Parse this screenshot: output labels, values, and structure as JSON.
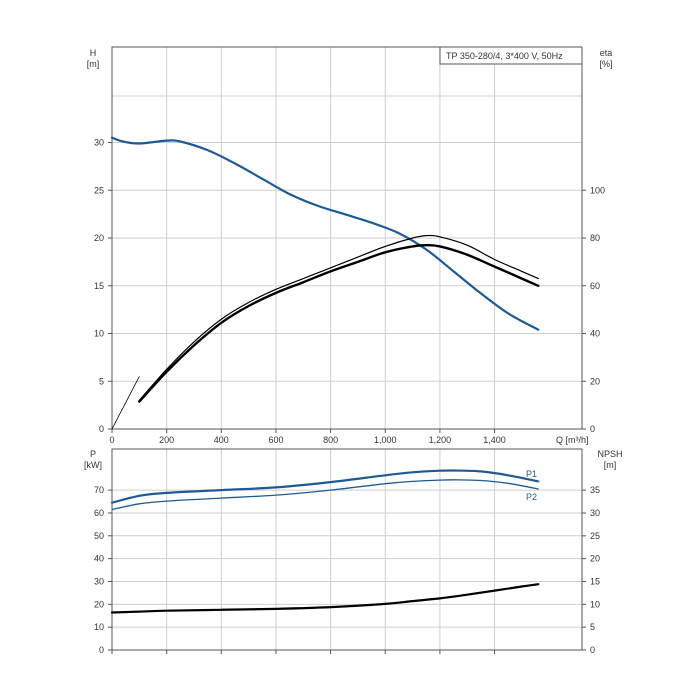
{
  "chart_data": [
    {
      "type": "line",
      "title": "TP 350-280/4, 3*400 V, 50Hz",
      "y_left_label": "H",
      "y_left_unit": "[m]",
      "y_right_label": "eta",
      "y_right_unit": "[%]",
      "x_label": "Q [m³/h]",
      "x_ticks": [
        "0",
        "200",
        "400",
        "600",
        "800",
        "1,000",
        "1,200",
        "1,400"
      ],
      "y_left_ticks": [
        "0",
        "5",
        "10",
        "15",
        "20",
        "25",
        "30"
      ],
      "y_right_ticks": [
        "0",
        "20",
        "40",
        "60",
        "80",
        "100"
      ],
      "xlim": [
        0,
        1720
      ],
      "ylim": [
        0,
        40
      ],
      "y_right_lim": [
        0,
        160
      ],
      "series": [
        {
          "axis": "left",
          "color": "#1f5a96",
          "width": 2.2,
          "points": [
            [
              0,
              30.5
            ],
            [
              40,
              30.1
            ],
            [
              100,
              29.9
            ],
            [
              200,
              30.2
            ],
            [
              250,
              30.1
            ],
            [
              350,
              29.2
            ],
            [
              450,
              27.8
            ],
            [
              550,
              26.2
            ],
            [
              650,
              24.6
            ],
            [
              750,
              23.4
            ],
            [
              850,
              22.5
            ],
            [
              950,
              21.6
            ],
            [
              1050,
              20.5
            ],
            [
              1150,
              18.8
            ],
            [
              1250,
              16.5
            ],
            [
              1350,
              14.2
            ],
            [
              1450,
              12.1
            ],
            [
              1560,
              10.4
            ]
          ]
        },
        {
          "axis": "right",
          "color": "#000000",
          "width": 1.2,
          "points": [
            [
              100,
              12
            ],
            [
              200,
              25
            ],
            [
              300,
              36.5
            ],
            [
              400,
              46
            ],
            [
              500,
              53
            ],
            [
              600,
              58.5
            ],
            [
              700,
              63
            ],
            [
              800,
              67.5
            ],
            [
              900,
              72
            ],
            [
              1000,
              76.5
            ],
            [
              1100,
              80
            ],
            [
              1150,
              81
            ],
            [
              1200,
              80.5
            ],
            [
              1300,
              77
            ],
            [
              1400,
              71
            ],
            [
              1500,
              66
            ],
            [
              1560,
              63
            ]
          ]
        },
        {
          "axis": "right",
          "color": "#000000",
          "width": 2.4,
          "points": [
            [
              100,
              11.5
            ],
            [
              200,
              24
            ],
            [
              300,
              35
            ],
            [
              400,
              44.5
            ],
            [
              500,
              51.5
            ],
            [
              600,
              57
            ],
            [
              700,
              61.5
            ],
            [
              800,
              66
            ],
            [
              900,
              70
            ],
            [
              1000,
              74
            ],
            [
              1100,
              76.5
            ],
            [
              1150,
              77
            ],
            [
              1200,
              76.5
            ],
            [
              1300,
              73
            ],
            [
              1400,
              68
            ],
            [
              1500,
              63
            ],
            [
              1560,
              60
            ]
          ]
        },
        {
          "axis": "left",
          "color": "#000000",
          "width": 0.8,
          "points": [
            [
              0,
              0
            ],
            [
              40,
              2.2
            ],
            [
              100,
              5.5
            ]
          ]
        }
      ]
    },
    {
      "type": "line",
      "y_left_label": "P",
      "y_left_unit": "[kW]",
      "y_right_label": "NPSH",
      "y_right_unit": "[m]",
      "y_left_ticks": [
        "0",
        "10",
        "20",
        "30",
        "40",
        "50",
        "60",
        "70"
      ],
      "y_right_ticks": [
        "0",
        "5",
        "10",
        "15",
        "20",
        "25",
        "30",
        "35"
      ],
      "xlim": [
        0,
        1720
      ],
      "ylim": [
        0,
        88
      ],
      "y_right_lim": [
        0,
        44
      ],
      "series_labels": [
        "P1",
        "P2"
      ],
      "series": [
        {
          "name": "P1",
          "axis": "left",
          "color": "#1f5a96",
          "width": 2.2,
          "points": [
            [
              0,
              64.5
            ],
            [
              100,
              67.5
            ],
            [
              200,
              68.8
            ],
            [
              400,
              70
            ],
            [
              600,
              71.2
            ],
            [
              800,
              73.5
            ],
            [
              1000,
              76.5
            ],
            [
              1100,
              77.8
            ],
            [
              1200,
              78.5
            ],
            [
              1250,
              78.6
            ],
            [
              1350,
              78.2
            ],
            [
              1450,
              76.5
            ],
            [
              1560,
              73.8
            ]
          ]
        },
        {
          "name": "P2",
          "axis": "left",
          "color": "#1f5a96",
          "width": 1.3,
          "points": [
            [
              0,
              61.5
            ],
            [
              100,
              64
            ],
            [
              200,
              65.2
            ],
            [
              400,
              66.5
            ],
            [
              600,
              67.8
            ],
            [
              800,
              70
            ],
            [
              1000,
              72.8
            ],
            [
              1100,
              73.8
            ],
            [
              1200,
              74.4
            ],
            [
              1250,
              74.5
            ],
            [
              1350,
              74.2
            ],
            [
              1450,
              73
            ],
            [
              1560,
              70.5
            ]
          ]
        },
        {
          "name": "NPSH",
          "axis": "right",
          "color": "#000000",
          "width": 2.2,
          "points": [
            [
              0,
              8.2
            ],
            [
              100,
              8.4
            ],
            [
              200,
              8.6
            ],
            [
              400,
              8.8
            ],
            [
              600,
              9
            ],
            [
              800,
              9.4
            ],
            [
              1000,
              10.1
            ],
            [
              1100,
              10.7
            ],
            [
              1200,
              11.3
            ],
            [
              1300,
              12.1
            ],
            [
              1400,
              13
            ],
            [
              1500,
              13.9
            ],
            [
              1560,
              14.4
            ]
          ]
        }
      ]
    }
  ]
}
